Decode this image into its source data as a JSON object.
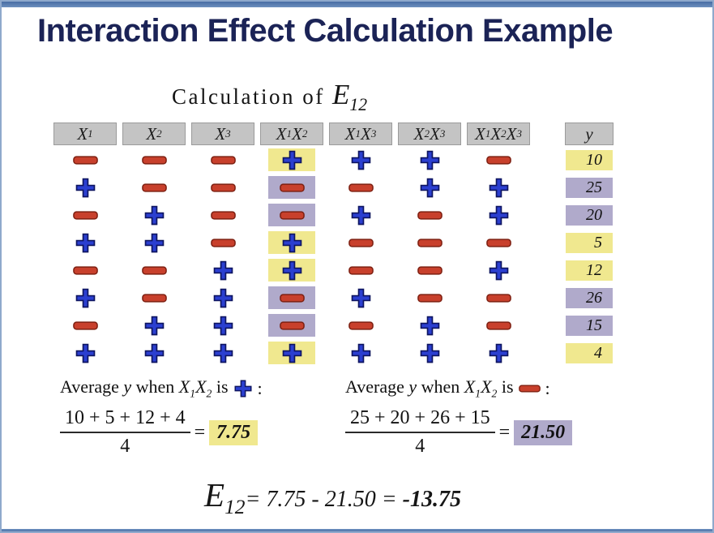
{
  "slide": {
    "title": "Interaction Effect Calculation Example",
    "subtitle_text": "Calculation of",
    "subtitle_symbol": "E_12"
  },
  "colors": {
    "title_navy": "#1b2356",
    "frame_blue": "#5b7fb0",
    "header_gray": "#c4c4c4",
    "highlight_yellow": "#f0e88f",
    "highlight_purple": "#b0aacb",
    "plus_blue": "#2b3fd0",
    "plus_outline": "#0e1560",
    "minus_red": "#c8402c",
    "minus_outline": "#7e2012"
  },
  "table": {
    "columns": [
      "X_1",
      "X_2",
      "X_3",
      "X_1 X_2",
      "X_1 X_3",
      "X_2 X_3",
      "X_1X_2X_3",
      "y"
    ],
    "column_names": [
      "x1",
      "x2",
      "x3",
      "x1x2",
      "x1x3",
      "x2x3",
      "x1x2x3",
      "y"
    ],
    "highlight_column_index": 3,
    "rows": [
      {
        "signs": [
          "-",
          "-",
          "-",
          "+",
          "+",
          "+",
          "-"
        ],
        "y": "10",
        "highlight": "yellow"
      },
      {
        "signs": [
          "+",
          "-",
          "-",
          "-",
          "-",
          "+",
          "+"
        ],
        "y": "25",
        "highlight": "purple"
      },
      {
        "signs": [
          "-",
          "+",
          "-",
          "-",
          "+",
          "-",
          "+"
        ],
        "y": "20",
        "highlight": "purple"
      },
      {
        "signs": [
          "+",
          "+",
          "-",
          "+",
          "-",
          "-",
          "-"
        ],
        "y": "5",
        "highlight": "yellow"
      },
      {
        "signs": [
          "-",
          "-",
          "+",
          "+",
          "-",
          "-",
          "+"
        ],
        "y": "12",
        "highlight": "yellow"
      },
      {
        "signs": [
          "+",
          "-",
          "+",
          "-",
          "+",
          "-",
          "-"
        ],
        "y": "26",
        "highlight": "purple"
      },
      {
        "signs": [
          "-",
          "+",
          "+",
          "-",
          "-",
          "+",
          "-"
        ],
        "y": "15",
        "highlight": "purple"
      },
      {
        "signs": [
          "+",
          "+",
          "+",
          "+",
          "+",
          "+",
          "+"
        ],
        "y": "4",
        "highlight": "yellow"
      }
    ]
  },
  "averages": {
    "left": {
      "label": "Average *y* when *X_1X_2* is",
      "sign": "+",
      "colon": ":",
      "numerator": "10 + 5 + 12 + 4",
      "denominator": "4",
      "equals": "=",
      "result": "7.75",
      "highlight": "yellow"
    },
    "right": {
      "label": "Average *y* when *X_1X_2* is",
      "sign": "-",
      "colon": ":",
      "numerator": "25 + 20 + 26 + 15",
      "denominator": "4",
      "equals": "=",
      "result": "21.50",
      "highlight": "purple"
    }
  },
  "conclusion": {
    "symbol": "E_12",
    "rest": "= 7.75 - 21.50 = ",
    "value": "-13.75"
  }
}
